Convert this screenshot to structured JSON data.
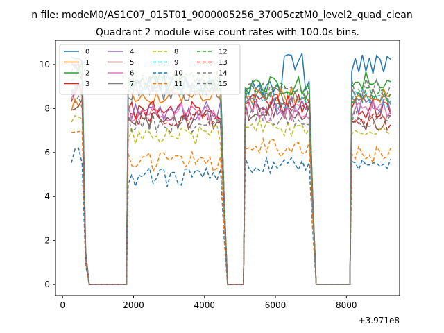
{
  "chart_data": {
    "type": "line",
    "suptitle": "n file: modeM0/AS1C07_015T01_9000005256_37005cztM0_level2_quad_clean",
    "title": "Quadrant 2 module wise count rates with 100.0s bins.",
    "xlabel": "",
    "ylabel": "",
    "x_offset_label": "+3.971e8",
    "xlim": [
      -200,
      9500
    ],
    "ylim": [
      -0.5,
      11.1
    ],
    "x_ticks": [
      0,
      2000,
      4000,
      6000,
      8000
    ],
    "x_tick_labels": [
      "0",
      "2000",
      "4000",
      "6000",
      "8000"
    ],
    "y_ticks": [
      0,
      2,
      4,
      6,
      8,
      10
    ],
    "y_tick_labels": [
      "0",
      "2",
      "4",
      "6",
      "8",
      "10"
    ],
    "grid": false,
    "legend_position": "upper-left",
    "legend_columns": 4,
    "segments": [
      {
        "x_start": 250,
        "x_end": 550
      },
      {
        "x_start": 1850,
        "x_end": 4450
      },
      {
        "x_start": 5150,
        "x_end": 6950
      },
      {
        "x_start": 8150,
        "x_end": 9250
      }
    ],
    "series": [
      {
        "name": "0",
        "color": "#1f77b4",
        "dashed": false,
        "levels": [
          10.1,
          9.1,
          8.9,
          10.0
        ]
      },
      {
        "name": "1",
        "color": "#ff7f0e",
        "dashed": false,
        "levels": [
          8.2,
          8.6,
          8.6,
          8.5
        ]
      },
      {
        "name": "2",
        "color": "#2ca02c",
        "dashed": false,
        "levels": [
          9.8,
          9.2,
          9.0,
          9.3
        ]
      },
      {
        "name": "3",
        "color": "#d62728",
        "dashed": false,
        "levels": [
          9.0,
          7.9,
          8.2,
          8.0
        ]
      },
      {
        "name": "4",
        "color": "#9467bd",
        "dashed": false,
        "levels": [
          8.8,
          7.9,
          8.1,
          8.2
        ]
      },
      {
        "name": "5",
        "color": "#8c564b",
        "dashed": false,
        "levels": [
          8.3,
          7.5,
          7.9,
          7.4
        ]
      },
      {
        "name": "6",
        "color": "#e377c2",
        "dashed": false,
        "levels": [
          8.7,
          7.8,
          7.8,
          7.9
        ]
      },
      {
        "name": "7",
        "color": "#7f7f7f",
        "dashed": false,
        "levels": [
          9.8,
          8.8,
          8.5,
          8.6
        ]
      },
      {
        "name": "8",
        "color": "#bcbd22",
        "dashed": true,
        "levels": [
          7.3,
          6.8,
          7.1,
          6.9
        ]
      },
      {
        "name": "9",
        "color": "#17becf",
        "dashed": true,
        "levels": [
          9.2,
          9.0,
          8.3,
          8.5
        ]
      },
      {
        "name": "10",
        "color": "#1f77b4",
        "dashed": true,
        "levels": [
          5.9,
          4.9,
          5.5,
          5.3
        ]
      },
      {
        "name": "11",
        "color": "#ff7f0e",
        "dashed": true,
        "levels": [
          6.6,
          5.6,
          6.2,
          5.9
        ]
      },
      {
        "name": "12",
        "color": "#2ca02c",
        "dashed": true,
        "levels": [
          9.5,
          9.2,
          8.8,
          8.7
        ]
      },
      {
        "name": "13",
        "color": "#d62728",
        "dashed": true,
        "levels": [
          8.7,
          7.6,
          8.2,
          7.4
        ]
      },
      {
        "name": "14",
        "color": "#7f7f7f",
        "dashed": true,
        "levels": [
          9.9,
          9.1,
          8.7,
          8.9
        ]
      },
      {
        "name": "15",
        "color": "#7f7f7f",
        "dashed": true,
        "levels": [
          8.4,
          7.3,
          7.7,
          7.6
        ]
      }
    ]
  }
}
